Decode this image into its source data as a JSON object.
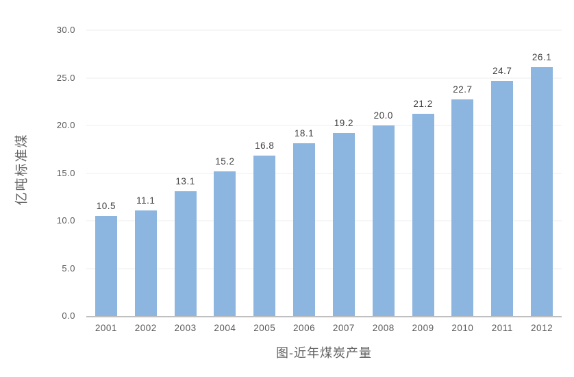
{
  "chart_data": {
    "type": "bar",
    "title": "图-近年煤炭产量",
    "ylabel": "亿吨标准煤",
    "categories": [
      "2001",
      "2002",
      "2003",
      "2004",
      "2005",
      "2006",
      "2007",
      "2008",
      "2009",
      "2010",
      "2011",
      "2012"
    ],
    "values": [
      10.5,
      11.1,
      13.1,
      15.2,
      16.8,
      18.1,
      19.2,
      20.0,
      21.2,
      22.7,
      24.7,
      26.1
    ],
    "ylim": [
      0,
      30
    ],
    "ytick_step": 5,
    "ytick_labels": [
      "0.0",
      "5.0",
      "10.0",
      "15.0",
      "20.0",
      "25.0",
      "30.0"
    ],
    "grid": true,
    "legend": "none",
    "colors": {
      "bar_fill": "#8CB6DF",
      "axis_line": "#BFBFBF",
      "gridline": "#ECECEC",
      "tick_label": "#595959",
      "value_label": "#404040",
      "title_text": "#636363",
      "background": "#FFFFFF"
    }
  }
}
